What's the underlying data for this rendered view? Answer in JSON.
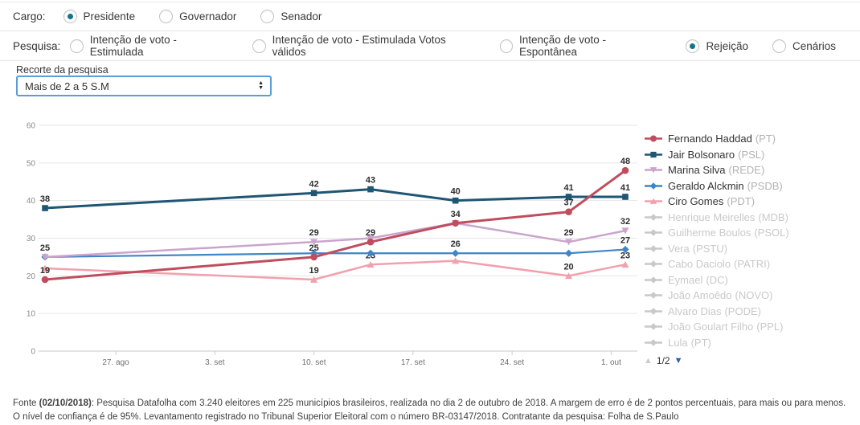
{
  "filters": {
    "cargo": {
      "label": "Cargo:",
      "options": [
        {
          "label": "Presidente",
          "selected": true
        },
        {
          "label": "Governador",
          "selected": false
        },
        {
          "label": "Senador",
          "selected": false
        }
      ]
    },
    "pesquisa": {
      "label": "Pesquisa:",
      "options": [
        {
          "label": "Intenção de voto - Estimulada",
          "selected": false
        },
        {
          "label": "Intenção de voto - Estimulada Votos válidos",
          "selected": false
        },
        {
          "label": "Intenção de voto - Espontânea",
          "selected": false
        },
        {
          "label": "Rejeição",
          "selected": true
        },
        {
          "label": "Cenários",
          "selected": false
        }
      ]
    },
    "recorte": {
      "label": "Recorte da pesquisa",
      "value": "Mais de 2 a 5 S.M"
    }
  },
  "chart_data": {
    "type": "line",
    "title": "",
    "ylim": [
      0,
      60
    ],
    "y_ticks": [
      0,
      10,
      20,
      30,
      40,
      50,
      60
    ],
    "x_tick_labels": [
      "27. ago",
      "3. set",
      "10. set",
      "17. set",
      "24. set",
      "1. out"
    ],
    "x_tick_days": [
      5,
      12,
      19,
      26,
      33,
      40
    ],
    "x_days": [
      0,
      19,
      23,
      29,
      37,
      41
    ],
    "grid": true,
    "legend_position": "right",
    "series": [
      {
        "name": "Fernando Haddad",
        "party": "PT",
        "color": "#c04d5e",
        "marker": "circle",
        "values": [
          19,
          25,
          29,
          34,
          37,
          48
        ],
        "show_label": [
          1,
          1,
          1,
          1,
          1,
          1
        ]
      },
      {
        "name": "Jair Bolsonaro",
        "party": "PSL",
        "color": "#1e5674",
        "marker": "square",
        "values": [
          38,
          42,
          43,
          40,
          41,
          41
        ],
        "show_label": [
          1,
          1,
          1,
          1,
          1,
          1
        ]
      },
      {
        "name": "Marina Silva",
        "party": "REDE",
        "color": "#cba4cd",
        "marker": "triangle-down",
        "values": [
          25,
          29,
          30,
          34,
          29,
          32
        ],
        "show_label": [
          0,
          1,
          0,
          0,
          1,
          1
        ]
      },
      {
        "name": "Geraldo Alckmin",
        "party": "PSDB",
        "color": "#3e86c7",
        "marker": "diamond",
        "values": [
          25,
          26,
          26,
          26,
          26,
          27
        ],
        "show_label": [
          1,
          0,
          0,
          1,
          0,
          1
        ]
      },
      {
        "name": "Ciro Gomes",
        "party": "PDT",
        "color": "#f0a1ad",
        "marker": "triangle-up",
        "values": [
          22,
          19,
          23,
          24,
          20,
          23
        ],
        "show_label": [
          0,
          1,
          1,
          0,
          1,
          1
        ]
      }
    ],
    "legend_disabled": [
      {
        "name": "Henrique Meirelles",
        "party": "MDB"
      },
      {
        "name": "Guilherme Boulos",
        "party": "PSOL"
      },
      {
        "name": "Vera",
        "party": "PSTU"
      },
      {
        "name": "Cabo Daciolo",
        "party": "PATRI"
      },
      {
        "name": "Eymael",
        "party": "DC"
      },
      {
        "name": "João Amoêdo",
        "party": "NOVO"
      },
      {
        "name": "Alvaro Dias",
        "party": "PODE"
      },
      {
        "name": "João Goulart Filho",
        "party": "PPL"
      },
      {
        "name": "Lula",
        "party": "PT"
      }
    ],
    "legend_pagination": "1/2"
  },
  "footer": {
    "prefix": "Fonte ",
    "date": "(02/10/2018)",
    "text": ": Pesquisa Datafolha com 3.240 eleitores em 225 municípios brasileiros, realizada no dia 2 de outubro de 2018. A margem de erro é de 2 pontos percentuais, para mais ou para menos. O nível de confiança é de 95%. Levantamento registrado no Tribunal Superior Eleitoral com o número BR-03147/2018. Contratante da pesquisa: Folha de S.Paulo"
  },
  "colors": {
    "radio_selected": "#16738e",
    "select_border": "#5b9dd8",
    "grid_line": "#e6e6e6",
    "axis_line": "#c9c9c9",
    "axis_label": "#8a8a8a",
    "data_label": "#2e2e2e",
    "disabled_legend": "#c9c9c9"
  }
}
